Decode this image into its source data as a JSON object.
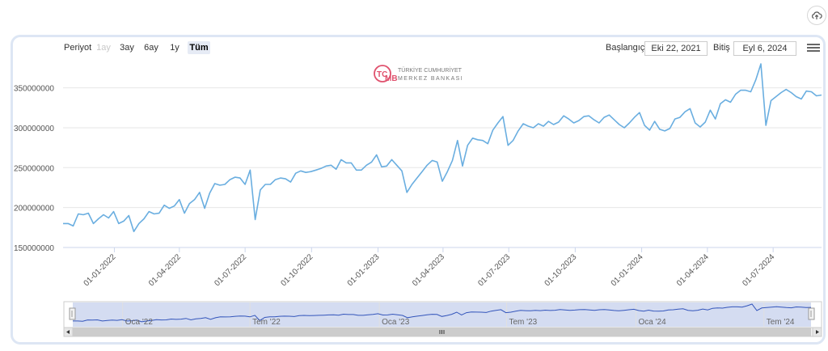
{
  "toolbar": {
    "period_label": "Periyot",
    "range_buttons": [
      {
        "label": "1ay",
        "state": "disabled"
      },
      {
        "label": "3ay",
        "state": "normal"
      },
      {
        "label": "6ay",
        "state": "normal"
      },
      {
        "label": "1y",
        "state": "normal"
      },
      {
        "label": "Tüm",
        "state": "active"
      }
    ],
    "start_label": "Başlangıç",
    "start_value": "Eki 22, 2021",
    "end_label": "Bitiş",
    "end_value": "Eyl 6, 2024"
  },
  "icons": {
    "upload": "cloud-upload-icon",
    "menu": "hamburger-menu-icon",
    "logo": "tcmb-logo-icon"
  },
  "watermark": {
    "line1": "TÜRKİYE CUMHURİYET",
    "line2": "MERKEZ BANKASI"
  },
  "colors": {
    "series_line": "#6aaee0",
    "navigator_line": "#3355bb",
    "navigator_fill": "#ccd6ee",
    "logo": "#e0526e",
    "card_border": "#dde6f4"
  },
  "navigator": {
    "labels": [
      "Oca '22",
      "Tem '22",
      "Oca '23",
      "Tem '23",
      "Oca '24",
      "Tem '24"
    ]
  },
  "chart_data": {
    "type": "line",
    "title": "",
    "xlabel": "",
    "ylabel": "",
    "ylim": [
      150000000,
      380000000
    ],
    "yticks": [
      150000000,
      200000000,
      250000000,
      300000000,
      350000000
    ],
    "xlim": [
      "2021-10-22",
      "2024-09-06"
    ],
    "xticks": [
      "01-01-2022",
      "01-04-2022",
      "01-07-2022",
      "01-10-2022",
      "01-01-2023",
      "01-04-2023",
      "01-07-2023",
      "01-10-2023",
      "01-01-2024",
      "01-04-2024",
      "01-07-2024"
    ],
    "grid": true,
    "legend": "none",
    "series": [
      {
        "values": [
          [
            "2021-10-22",
            180000000
          ],
          [
            "2021-10-29",
            180000000
          ],
          [
            "2021-11-05",
            177000000
          ],
          [
            "2021-11-12",
            192000000
          ],
          [
            "2021-11-19",
            191000000
          ],
          [
            "2021-11-26",
            193000000
          ],
          [
            "2021-12-03",
            180000000
          ],
          [
            "2021-12-10",
            186000000
          ],
          [
            "2021-12-17",
            191000000
          ],
          [
            "2021-12-24",
            187000000
          ],
          [
            "2021-12-31",
            195000000
          ],
          [
            "2022-01-07",
            180000000
          ],
          [
            "2022-01-14",
            183000000
          ],
          [
            "2022-01-21",
            190000000
          ],
          [
            "2022-01-28",
            170000000
          ],
          [
            "2022-02-04",
            180000000
          ],
          [
            "2022-02-11",
            186000000
          ],
          [
            "2022-02-18",
            195000000
          ],
          [
            "2022-02-25",
            192000000
          ],
          [
            "2022-03-04",
            193000000
          ],
          [
            "2022-03-11",
            203000000
          ],
          [
            "2022-03-18",
            199000000
          ],
          [
            "2022-03-25",
            202000000
          ],
          [
            "2022-04-01",
            210000000
          ],
          [
            "2022-04-08",
            193000000
          ],
          [
            "2022-04-15",
            205000000
          ],
          [
            "2022-04-22",
            210000000
          ],
          [
            "2022-04-29",
            219000000
          ],
          [
            "2022-05-06",
            199000000
          ],
          [
            "2022-05-13",
            218000000
          ],
          [
            "2022-05-20",
            230000000
          ],
          [
            "2022-05-27",
            228000000
          ],
          [
            "2022-06-03",
            229000000
          ],
          [
            "2022-06-10",
            235000000
          ],
          [
            "2022-06-17",
            238000000
          ],
          [
            "2022-06-24",
            237000000
          ],
          [
            "2022-07-01",
            229000000
          ],
          [
            "2022-07-08",
            247000000
          ],
          [
            "2022-07-15",
            185000000
          ],
          [
            "2022-07-22",
            222000000
          ],
          [
            "2022-07-29",
            229000000
          ],
          [
            "2022-08-05",
            229000000
          ],
          [
            "2022-08-12",
            235000000
          ],
          [
            "2022-08-19",
            237000000
          ],
          [
            "2022-08-26",
            236000000
          ],
          [
            "2022-09-02",
            232000000
          ],
          [
            "2022-09-09",
            243000000
          ],
          [
            "2022-09-16",
            246000000
          ],
          [
            "2022-09-23",
            244000000
          ],
          [
            "2022-09-30",
            245000000
          ],
          [
            "2022-10-07",
            247000000
          ],
          [
            "2022-10-14",
            249000000
          ],
          [
            "2022-10-21",
            252000000
          ],
          [
            "2022-10-28",
            253000000
          ],
          [
            "2022-11-04",
            248000000
          ],
          [
            "2022-11-11",
            260000000
          ],
          [
            "2022-11-18",
            256000000
          ],
          [
            "2022-11-25",
            256000000
          ],
          [
            "2022-12-02",
            247000000
          ],
          [
            "2022-12-09",
            247000000
          ],
          [
            "2022-12-16",
            253000000
          ],
          [
            "2022-12-23",
            257000000
          ],
          [
            "2022-12-30",
            266000000
          ],
          [
            "2023-01-06",
            251000000
          ],
          [
            "2023-01-13",
            252000000
          ],
          [
            "2023-01-20",
            260000000
          ],
          [
            "2023-01-27",
            253000000
          ],
          [
            "2023-02-03",
            246000000
          ],
          [
            "2023-02-10",
            219000000
          ],
          [
            "2023-02-17",
            229000000
          ],
          [
            "2023-02-24",
            237000000
          ],
          [
            "2023-03-03",
            245000000
          ],
          [
            "2023-03-10",
            253000000
          ],
          [
            "2023-03-17",
            259000000
          ],
          [
            "2023-03-24",
            257000000
          ],
          [
            "2023-03-31",
            233000000
          ],
          [
            "2023-04-07",
            245000000
          ],
          [
            "2023-04-14",
            259000000
          ],
          [
            "2023-04-21",
            284000000
          ],
          [
            "2023-04-28",
            252000000
          ],
          [
            "2023-05-05",
            278000000
          ],
          [
            "2023-05-12",
            287000000
          ],
          [
            "2023-05-19",
            285000000
          ],
          [
            "2023-05-26",
            284000000
          ],
          [
            "2023-06-02",
            280000000
          ],
          [
            "2023-06-09",
            297000000
          ],
          [
            "2023-06-16",
            306000000
          ],
          [
            "2023-06-23",
            314000000
          ],
          [
            "2023-06-30",
            278000000
          ],
          [
            "2023-07-07",
            284000000
          ],
          [
            "2023-07-14",
            296000000
          ],
          [
            "2023-07-21",
            305000000
          ],
          [
            "2023-07-28",
            302000000
          ],
          [
            "2023-08-04",
            300000000
          ],
          [
            "2023-08-11",
            305000000
          ],
          [
            "2023-08-18",
            302000000
          ],
          [
            "2023-08-25",
            308000000
          ],
          [
            "2023-09-01",
            304000000
          ],
          [
            "2023-09-08",
            307000000
          ],
          [
            "2023-09-15",
            315000000
          ],
          [
            "2023-09-22",
            311000000
          ],
          [
            "2023-09-29",
            306000000
          ],
          [
            "2023-10-06",
            309000000
          ],
          [
            "2023-10-13",
            314000000
          ],
          [
            "2023-10-20",
            315000000
          ],
          [
            "2023-10-27",
            310000000
          ],
          [
            "2023-11-03",
            306000000
          ],
          [
            "2023-11-10",
            313000000
          ],
          [
            "2023-11-17",
            316000000
          ],
          [
            "2023-11-24",
            310000000
          ],
          [
            "2023-12-01",
            304000000
          ],
          [
            "2023-12-08",
            300000000
          ],
          [
            "2023-12-15",
            306000000
          ],
          [
            "2023-12-22",
            313000000
          ],
          [
            "2023-12-29",
            319000000
          ],
          [
            "2024-01-05",
            303000000
          ],
          [
            "2024-01-12",
            297000000
          ],
          [
            "2024-01-19",
            308000000
          ],
          [
            "2024-01-26",
            298000000
          ],
          [
            "2024-02-02",
            296000000
          ],
          [
            "2024-02-09",
            299000000
          ],
          [
            "2024-02-16",
            311000000
          ],
          [
            "2024-02-23",
            313000000
          ],
          [
            "2024-03-01",
            320000000
          ],
          [
            "2024-03-08",
            324000000
          ],
          [
            "2024-03-15",
            306000000
          ],
          [
            "2024-03-22",
            301000000
          ],
          [
            "2024-03-29",
            307000000
          ],
          [
            "2024-04-05",
            322000000
          ],
          [
            "2024-04-12",
            311000000
          ],
          [
            "2024-04-19",
            330000000
          ],
          [
            "2024-04-26",
            335000000
          ],
          [
            "2024-05-03",
            332000000
          ],
          [
            "2024-05-10",
            342000000
          ],
          [
            "2024-05-17",
            347000000
          ],
          [
            "2024-05-24",
            347000000
          ],
          [
            "2024-05-31",
            345000000
          ],
          [
            "2024-06-07",
            360000000
          ],
          [
            "2024-06-14",
            380000000
          ],
          [
            "2024-06-21",
            303000000
          ],
          [
            "2024-06-28",
            334000000
          ],
          [
            "2024-07-05",
            339000000
          ],
          [
            "2024-07-12",
            344000000
          ],
          [
            "2024-07-19",
            348000000
          ],
          [
            "2024-07-26",
            344000000
          ],
          [
            "2024-08-02",
            339000000
          ],
          [
            "2024-08-09",
            336000000
          ],
          [
            "2024-08-16",
            346000000
          ],
          [
            "2024-08-23",
            345000000
          ],
          [
            "2024-08-30",
            340000000
          ],
          [
            "2024-09-06",
            341000000
          ]
        ]
      }
    ]
  }
}
